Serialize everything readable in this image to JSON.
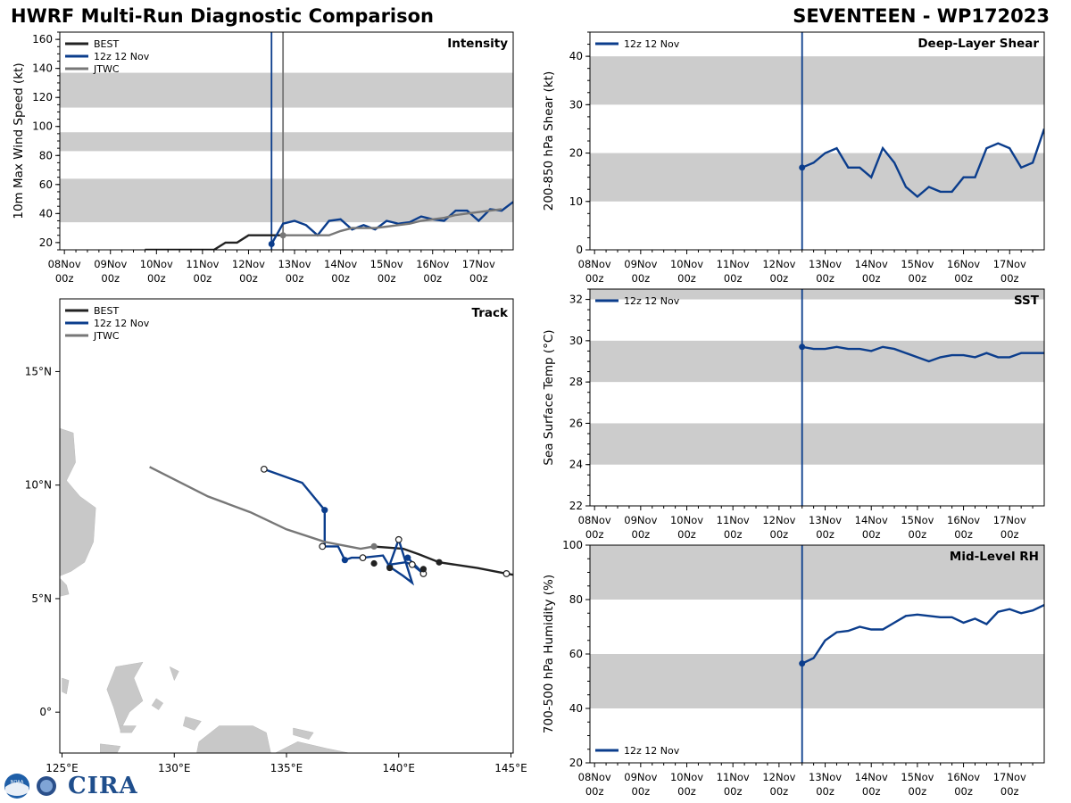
{
  "header": {
    "title_left": "HWRF Multi-Run Diagnostic Comparison",
    "title_right": "SEVENTEEN - WP172023"
  },
  "logo": {
    "text": "CIRA",
    "badge_text": "NOAA"
  },
  "colors": {
    "best": "#222222",
    "run": "#0b3d8c",
    "jtwc": "#777777",
    "band": "#cccccc",
    "land": "#c8c8c8"
  },
  "time_axis": {
    "labels": [
      "08Nov",
      "09Nov",
      "10Nov",
      "11Nov",
      "12Nov",
      "13Nov",
      "14Nov",
      "15Nov",
      "16Nov",
      "17Nov"
    ],
    "sublabel": "00z"
  },
  "chart_data": [
    {
      "type": "line",
      "id": "intensity",
      "title": "Intensity",
      "xlabel": "",
      "ylabel": "10m Max Wind Speed (kt)",
      "ylim": [
        15,
        165
      ],
      "xlim_days": [
        -0.1,
        9.75
      ],
      "yticks": [
        20,
        40,
        60,
        80,
        100,
        120,
        140,
        160
      ],
      "bands": [
        [
          34,
          64
        ],
        [
          83,
          96
        ],
        [
          113,
          137
        ]
      ],
      "legend": [
        "BEST",
        "12z 12 Nov",
        "JTWC"
      ],
      "vlines": [
        {
          "t": 4.5,
          "series": "run"
        },
        {
          "t": 4.75,
          "series": "jtwc"
        }
      ],
      "series": [
        {
          "name": "BEST",
          "key": "best",
          "t": [
            1.75,
            2,
            2.25,
            2.5,
            2.75,
            3,
            3.25,
            3.5,
            3.75,
            4,
            4.25,
            4.5,
            4.75
          ],
          "values": [
            15,
            15,
            15,
            15,
            15,
            15,
            15,
            20,
            20,
            25,
            25,
            25,
            25
          ],
          "markers": []
        },
        {
          "name": "12z 12 Nov",
          "key": "run",
          "t": [
            4.5,
            4.75,
            5,
            5.25,
            5.5,
            5.75,
            6,
            6.25,
            6.5,
            6.75,
            7,
            7.25,
            7.5,
            7.75,
            8,
            8.25,
            8.5,
            8.75,
            9,
            9.25,
            9.5,
            9.75
          ],
          "values": [
            19,
            33,
            35,
            32,
            25,
            35,
            36,
            29,
            32,
            29,
            35,
            33,
            34,
            38,
            36,
            35,
            42,
            42,
            35,
            43,
            42,
            48
          ],
          "markers": [
            0
          ]
        },
        {
          "name": "JTWC",
          "key": "jtwc",
          "t": [
            4.75,
            5,
            5.25,
            5.5,
            5.75,
            6,
            6.25,
            6.5,
            6.75,
            7,
            7.25,
            7.5,
            7.75,
            8,
            8.25,
            8.5,
            8.75,
            9,
            9.25,
            9.5
          ],
          "values": [
            25,
            25,
            25,
            25,
            25,
            28,
            30,
            30,
            30,
            31,
            32,
            33,
            35,
            36,
            37,
            39,
            40,
            41,
            42,
            43
          ],
          "markers": [
            0
          ]
        }
      ]
    },
    {
      "type": "line",
      "id": "shear",
      "title": "Deep-Layer Shear",
      "xlabel": "",
      "ylabel": "200-850 hPa Shear (kt)",
      "ylim": [
        0,
        45
      ],
      "xlim_days": [
        -0.1,
        9.75
      ],
      "yticks": [
        0,
        10,
        20,
        30,
        40
      ],
      "bands": [
        [
          10,
          20
        ],
        [
          30,
          40
        ]
      ],
      "legend": [
        "12z 12 Nov"
      ],
      "vlines": [
        {
          "t": 4.5,
          "series": "run"
        }
      ],
      "series": [
        {
          "name": "12z 12 Nov",
          "key": "run",
          "t": [
            4.5,
            4.75,
            5,
            5.25,
            5.5,
            5.75,
            6,
            6.25,
            6.5,
            6.75,
            7,
            7.25,
            7.5,
            7.75,
            8,
            8.25,
            8.5,
            8.75,
            9,
            9.25,
            9.5,
            9.75
          ],
          "values": [
            17,
            18,
            20,
            21,
            17,
            17,
            15,
            21,
            18,
            13,
            11,
            13,
            12,
            12,
            15,
            15,
            21,
            22,
            21,
            17,
            18,
            25
          ],
          "markers": [
            0
          ]
        }
      ]
    },
    {
      "type": "line",
      "id": "sst",
      "title": "SST",
      "xlabel": "",
      "ylabel": "Sea Surface Temp (°C)",
      "ylim": [
        22,
        32.5
      ],
      "xlim_days": [
        -0.1,
        9.75
      ],
      "yticks": [
        22,
        24,
        26,
        28,
        30,
        32
      ],
      "bands": [
        [
          24,
          26
        ],
        [
          28,
          30
        ],
        [
          32,
          32.5
        ]
      ],
      "legend": [
        "12z 12 Nov"
      ],
      "vlines": [
        {
          "t": 4.5,
          "series": "run"
        }
      ],
      "series": [
        {
          "name": "12z 12 Nov",
          "key": "run",
          "t": [
            4.5,
            4.75,
            5,
            5.25,
            5.5,
            5.75,
            6,
            6.25,
            6.5,
            6.75,
            7,
            7.25,
            7.5,
            7.75,
            8,
            8.25,
            8.5,
            8.75,
            9,
            9.25,
            9.5,
            9.75
          ],
          "values": [
            29.7,
            29.6,
            29.6,
            29.7,
            29.6,
            29.6,
            29.5,
            29.7,
            29.6,
            29.4,
            29.2,
            29.0,
            29.2,
            29.3,
            29.3,
            29.2,
            29.4,
            29.2,
            29.2,
            29.4,
            29.4,
            29.4
          ],
          "markers": [
            0
          ]
        }
      ]
    },
    {
      "type": "line",
      "id": "rh",
      "title": "Mid-Level RH",
      "xlabel": "",
      "ylabel": "700-500 hPa Humidity (%)",
      "ylim": [
        20,
        100
      ],
      "xlim_days": [
        -0.1,
        9.75
      ],
      "yticks": [
        20,
        40,
        60,
        80,
        100
      ],
      "bands": [
        [
          40,
          60
        ],
        [
          80,
          100
        ]
      ],
      "legend": [
        "12z 12 Nov"
      ],
      "legend_position": "bottom-left",
      "vlines": [
        {
          "t": 4.5,
          "series": "run"
        }
      ],
      "series": [
        {
          "name": "12z 12 Nov",
          "key": "run",
          "t": [
            4.5,
            4.75,
            5,
            5.25,
            5.5,
            5.75,
            6,
            6.25,
            6.5,
            6.75,
            7,
            7.25,
            7.5,
            7.75,
            8,
            8.25,
            8.5,
            8.75,
            9,
            9.25,
            9.5,
            9.75
          ],
          "values": [
            56.5,
            58.5,
            65,
            68,
            68.5,
            70,
            69,
            69,
            71.5,
            74,
            74.5,
            74,
            73.5,
            73.5,
            71.5,
            73,
            71,
            75.5,
            76.5,
            75,
            76,
            78
          ],
          "markers": [
            0
          ]
        }
      ]
    },
    {
      "type": "scatter",
      "id": "track",
      "title": "Track",
      "xlabel": "",
      "ylabel": "",
      "xlim": [
        124.9,
        145.1
      ],
      "ylim": [
        -1.8,
        18.2
      ],
      "xticks": [
        125,
        130,
        135,
        140,
        145
      ],
      "xtick_labels": [
        "125°E",
        "130°E",
        "135°E",
        "140°E",
        "145°E"
      ],
      "yticks": [
        0,
        5,
        10,
        15
      ],
      "ytick_labels": [
        "0°",
        "5°N",
        "10°N",
        "15°N"
      ],
      "legend": [
        "BEST",
        "12z 12 Nov",
        "JTWC"
      ],
      "series": [
        {
          "name": "BEST",
          "key": "best",
          "lon": [
            145.1,
            144.8,
            143.5,
            141.8,
            140.9,
            140.2,
            139.5,
            138.8
          ],
          "lat": [
            6.05,
            6.1,
            6.35,
            6.6,
            6.95,
            7.2,
            7.25,
            7.3
          ],
          "open": [
            1
          ],
          "filled": [
            3
          ]
        },
        {
          "name": "12z 12 Nov",
          "key": "run",
          "lon": [
            134.0,
            135.7,
            136.7,
            136.7,
            136.6,
            137.3,
            137.6,
            137.9,
            138.4,
            139.3,
            139.6,
            140.2,
            140.6,
            140.0,
            139.6,
            140.3,
            140.6,
            141.1,
            140.9,
            140.5,
            140.4
          ],
          "lat": [
            10.7,
            10.1,
            8.9,
            7.3,
            7.3,
            7.3,
            6.7,
            6.8,
            6.8,
            6.9,
            6.4,
            6.0,
            5.7,
            7.6,
            6.5,
            6.6,
            6.5,
            6.1,
            6.3,
            6.7,
            6.8
          ],
          "open": [
            0,
            4,
            8,
            13,
            16,
            17
          ],
          "filled": [
            2,
            6,
            10,
            20
          ]
        },
        {
          "name": "JTWC",
          "key": "jtwc",
          "lon": [
            138.9,
            138.3,
            136.7,
            135.0,
            133.4,
            131.5,
            128.9
          ],
          "lat": [
            7.3,
            7.2,
            7.5,
            8.05,
            8.8,
            9.5,
            10.8
          ],
          "open": [],
          "filled": [
            0
          ]
        },
        {
          "name": "BEST markers",
          "key": "best",
          "lon": [
            141.1,
            139.6,
            138.9
          ],
          "lat": [
            6.3,
            6.35,
            6.55
          ],
          "open": [],
          "filled": [
            0,
            1,
            2
          ],
          "no_line": true
        }
      ]
    }
  ]
}
